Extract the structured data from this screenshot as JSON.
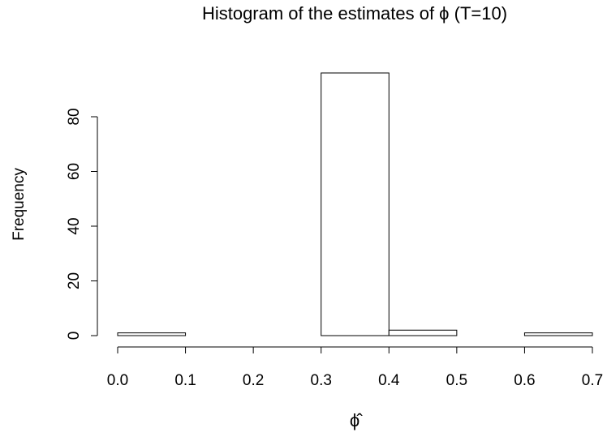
{
  "chart_data": {
    "type": "histogram",
    "title": "Histogram of the estimates of ϕ (T=10)",
    "x_label": "ϕ̂",
    "y_label": "Frequency",
    "bins": [
      0.0,
      0.1,
      0.2,
      0.3,
      0.4,
      0.5,
      0.6,
      0.7
    ],
    "values": [
      1,
      0,
      0,
      96,
      2,
      0,
      1
    ],
    "color": "#ffffff",
    "xlim": [
      0,
      0.7
    ],
    "xticks": [
      {
        "value": 0,
        "label": "0.0"
      },
      0.1,
      0.2,
      0.3,
      0.4,
      0.5,
      0.6,
      0.7
    ],
    "ylim": [
      0,
      96
    ],
    "yticks": [
      0,
      20,
      40,
      60,
      80
    ],
    "grid": false
  }
}
